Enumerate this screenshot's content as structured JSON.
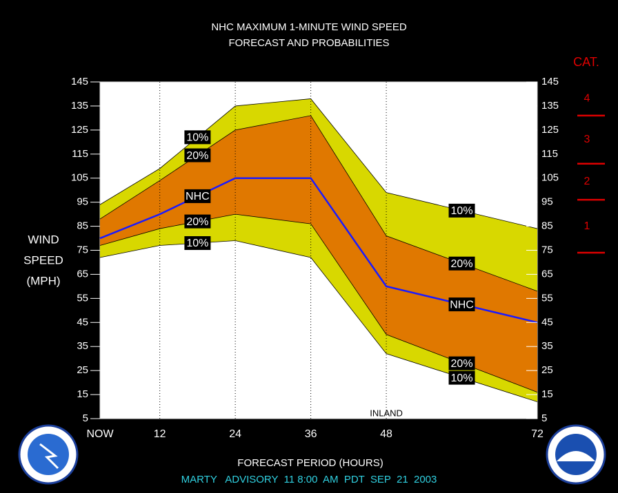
{
  "chart_data": {
    "type": "probability-band",
    "title": [
      "NHC MAXIMUM 1-MINUTE WIND SPEED",
      "FORECAST AND PROBABILITIES"
    ],
    "y_label": [
      "WIND",
      "SPEED",
      "(MPH)"
    ],
    "x_label": "FORECAST PERIOD (HOURS)",
    "footer": "MARTY   ADVISORY  11 8:00  AM  PDT  SEP  21  2003",
    "annotation": {
      "text": "INLAND",
      "x": 48
    },
    "x": [
      2.5,
      12,
      24,
      36,
      48,
      72
    ],
    "xlim": [
      2.5,
      72
    ],
    "xticks": [
      {
        "value": 2.5,
        "label": "NOW"
      },
      12,
      24,
      36,
      48,
      72
    ],
    "ylim": [
      5,
      145
    ],
    "yticks": [
      5,
      15,
      25,
      35,
      45,
      55,
      65,
      75,
      85,
      95,
      105,
      115,
      125,
      135,
      145
    ],
    "grid": true,
    "series": [
      {
        "name": "10%",
        "color": "#d8d800",
        "values": [
          94,
          109,
          135,
          138,
          99,
          84
        ]
      },
      {
        "name": "20%",
        "color": "#e07800",
        "values": [
          88,
          104,
          125,
          131,
          81,
          58
        ]
      },
      {
        "name": "NHC",
        "color": "#1a1aff",
        "values": [
          80,
          90,
          105,
          105,
          60,
          45
        ]
      },
      {
        "name": "20%",
        "color": "#e07800",
        "values": [
          77,
          84,
          90,
          86,
          40,
          16
        ]
      },
      {
        "name": "10%",
        "color": "#d8d800",
        "values": [
          72,
          77,
          79,
          72,
          32,
          12
        ]
      }
    ],
    "category_scale": {
      "title": "CAT.",
      "color": "#e00000",
      "boundaries": [
        74,
        96,
        111,
        131
      ],
      "labels": [
        "1",
        "2",
        "3",
        "4"
      ]
    }
  }
}
